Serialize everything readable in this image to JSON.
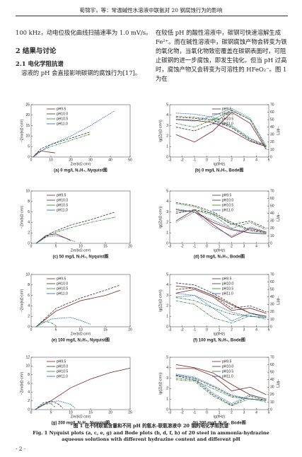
{
  "header": "荀锦宇，等：常温碱性水溶液中联氨对 20 钢腐蚀行为的影响",
  "left_line": "100 kHz，动电位极化曲线扫描速率为 1.0 mV/s。",
  "section": "2  结果与讨论",
  "subsection": "2.1  电化学阻抗谱",
  "left_para": "溶液的 pH 会直接影响碳钢的腐蚀行为[17]。",
  "right_para": "在较低 pH 的酸性溶液中，碳钢可快速溶解生成 Fe²⁺。而在碱性溶液中，碳钢腐蚀产物会转变为铁的氧化物，当氧化物致密覆盖在碳钢表面时，可阻止碳钢的进一步腐蚀，即发生钝化。但当 pH 过高时，腐蚀产物又会转变为可溶性的 HFeO₂⁻。图 1 为在",
  "fig_caption_cn": "图 1  在不同联氨含量和不同 pH 的氨水-联氨溶液中 20 钢的电化学阻抗谱",
  "fig_caption_en": "Fig. 1  Nyquist plots (a, c, e, g) and Bode plots (b, d, f, h) of 20 steel in ammonia-hydrazine aqueous solutions with different hydrazine content and different pH",
  "page_number": "· 2 ·",
  "chart_data": [
    {
      "type": "nyquist",
      "title": "(a) 0 mg/L N₂H₄, Nyquist图",
      "x_label": "Zre/(kΩ·cm²)",
      "y_label": "−Zim/(kΩ·cm²)",
      "xlim": [
        0,
        50
      ],
      "ylim": [
        0,
        25
      ],
      "xticks": [
        0,
        10,
        20,
        30,
        40,
        50
      ],
      "yticks": [
        0,
        5,
        10,
        15,
        20,
        25
      ],
      "series": [
        {
          "name": "pH9.5",
          "color": "#7a1e1e",
          "x": [
            1,
            3,
            5,
            8,
            12
          ],
          "values": [
            0,
            2,
            3,
            2.5,
            2
          ]
        },
        {
          "name": "pH10.0",
          "color": "#333333",
          "x": [
            1,
            5,
            10,
            20,
            30
          ],
          "values": [
            0,
            4,
            6,
            9,
            12
          ]
        },
        {
          "name": "pH10.5",
          "color": "#2e7d32",
          "x": [
            1,
            5,
            10,
            20,
            30
          ],
          "values": [
            0,
            3,
            5,
            8,
            11
          ]
        },
        {
          "name": "pH11.0",
          "color": "#1f5fa8",
          "x": [
            1,
            10,
            20,
            30,
            42
          ],
          "values": [
            0,
            6,
            10,
            15,
            22
          ]
        }
      ]
    },
    {
      "type": "bode",
      "title": "(b) 0 mg/L N₂H₄, Bode图",
      "x_label": "lg(f/Hz)",
      "y_label": "lg(|Z|/(Ω·cm²))",
      "y2_label": "−θ/(°)",
      "xlim": [
        -3,
        5
      ],
      "ylim": [
        0,
        5
      ],
      "y2lim": [
        0,
        70
      ],
      "xticks": [
        -3,
        -2,
        -1,
        0,
        1,
        2,
        3,
        4,
        5
      ],
      "yticks": [
        0,
        1,
        2,
        3,
        4,
        5
      ],
      "y2ticks": [
        0,
        10,
        20,
        30,
        40,
        50,
        60,
        70
      ],
      "x": [
        -2.5,
        -1,
        0.5,
        2,
        3.5,
        4.8
      ],
      "series": [
        {
          "name": "pH9.5",
          "color": "#7a1e1e",
          "values": [
            3.6,
            3.5,
            3.3,
            2.5,
            1.5,
            1.0
          ]
        },
        {
          "name": "pH10.0",
          "color": "#333333",
          "values": [
            3.8,
            3.7,
            3.5,
            2.8,
            1.6,
            1.0
          ]
        },
        {
          "name": "pH10.5",
          "color": "#2e7d32",
          "values": [
            3.9,
            3.8,
            3.6,
            2.9,
            1.7,
            1.1
          ]
        },
        {
          "name": "pH11.0",
          "color": "#1f5fa8",
          "values": [
            4.2,
            4.1,
            3.8,
            3.0,
            1.8,
            1.1
          ]
        },
        {
          "color": "#7a1e1e",
          "axis": "y2",
          "values": [
            30,
            20,
            35,
            60,
            45,
            10
          ]
        },
        {
          "color": "#333333",
          "axis": "y2",
          "values": [
            40,
            35,
            45,
            62,
            50,
            12
          ]
        },
        {
          "color": "#2e7d32",
          "axis": "y2",
          "values": [
            45,
            40,
            50,
            63,
            50,
            12
          ]
        },
        {
          "color": "#1f5fa8",
          "axis": "y2",
          "values": [
            50,
            48,
            55,
            65,
            52,
            15
          ]
        }
      ]
    },
    {
      "type": "nyquist",
      "title": "(c) 50 mg/L N₂H₄, Nyquist图",
      "x_label": "Zre/(kΩ·cm²)",
      "y_label": "−Zim/(kΩ·cm²)",
      "xlim": [
        0,
        20
      ],
      "ylim": [
        0,
        10
      ],
      "xticks": [
        0,
        5,
        10,
        15,
        20
      ],
      "yticks": [
        0,
        2,
        4,
        6,
        8,
        10
      ],
      "series": [
        {
          "name": "pH9.5",
          "color": "#7a1e1e",
          "x": [
            1,
            3,
            5,
            7,
            8
          ],
          "values": [
            0,
            1.5,
            1.8,
            1,
            0.5
          ]
        },
        {
          "name": "pH10.0",
          "color": "#333333",
          "x": [
            1,
            4,
            8,
            12,
            17
          ],
          "values": [
            0,
            2,
            3.5,
            4.5,
            6
          ]
        },
        {
          "name": "pH10.5",
          "color": "#2e7d32",
          "x": [
            1,
            4,
            8,
            12,
            17
          ],
          "values": [
            0,
            1.8,
            3,
            4,
            5
          ]
        },
        {
          "name": "pH11.0",
          "color": "#1f5fa8",
          "x": [
            1,
            3,
            5,
            7,
            9
          ],
          "values": [
            0,
            1.2,
            1.5,
            1,
            0.3
          ]
        }
      ]
    },
    {
      "type": "bode",
      "title": "(d) 50 mg/L N₂H₄, Bode图",
      "x_label": "lg(f/Hz)",
      "y_label": "lg(|Z|/(Ω·cm²))",
      "y2_label": "−θ/(°)",
      "xlim": [
        -3,
        5
      ],
      "ylim": [
        0,
        5
      ],
      "y2lim": [
        0,
        70
      ],
      "xticks": [
        -3,
        -2,
        -1,
        0,
        1,
        2,
        3,
        4,
        5
      ],
      "yticks": [
        0,
        1,
        2,
        3,
        4,
        5
      ],
      "y2ticks": [
        0,
        10,
        20,
        30,
        40,
        50,
        60,
        70
      ],
      "x": [
        -2.5,
        -1,
        0.5,
        2,
        3.5,
        4.8
      ],
      "series": [
        {
          "name": "pH9.5",
          "color": "#7a1e1e",
          "values": [
            3.2,
            3.0,
            2.0,
            1.3,
            1.0,
            0.9
          ]
        },
        {
          "name": "pH10.0",
          "color": "#333333",
          "values": [
            3.9,
            3.6,
            3.0,
            2.0,
            1.3,
            1.0
          ]
        },
        {
          "name": "pH10.5",
          "color": "#2e7d32",
          "values": [
            3.8,
            3.5,
            2.8,
            1.9,
            1.2,
            1.0
          ]
        },
        {
          "name": "pH11.0",
          "color": "#1f5fa8",
          "values": [
            3.3,
            3.0,
            2.2,
            1.4,
            1.0,
            0.9
          ]
        },
        {
          "color": "#7a1e1e",
          "axis": "y2",
          "values": [
            30,
            45,
            25,
            8,
            20,
            15
          ]
        },
        {
          "color": "#333333",
          "axis": "y2",
          "values": [
            40,
            45,
            40,
            25,
            30,
            20
          ]
        },
        {
          "color": "#2e7d32",
          "axis": "y2",
          "values": [
            42,
            44,
            38,
            20,
            28,
            18
          ]
        },
        {
          "color": "#1f5fa8",
          "axis": "y2",
          "values": [
            28,
            42,
            22,
            10,
            22,
            15
          ]
        }
      ]
    },
    {
      "type": "nyquist",
      "title": "(e) 100 mg/L N₂H₄, Nyquist图",
      "x_label": "Zre/(kΩ·cm²)",
      "y_label": "−Zim/(kΩ·cm²)",
      "xlim": [
        0,
        20
      ],
      "ylim": [
        0,
        10
      ],
      "xticks": [
        0,
        5,
        10,
        15,
        20
      ],
      "yticks": [
        0,
        2,
        4,
        6,
        8,
        10
      ],
      "series": [
        {
          "name": "pH9.5",
          "color": "#7a1e1e",
          "x": [
            1,
            5,
            10,
            15,
            18
          ],
          "values": [
            0,
            3,
            5,
            6,
            7
          ]
        },
        {
          "name": "pH10.0",
          "color": "#333333",
          "x": [
            1,
            5,
            10,
            15,
            18
          ],
          "values": [
            0,
            3.5,
            5.5,
            7,
            8
          ]
        },
        {
          "name": "pH10.5",
          "color": "#2e7d32",
          "x": [
            1,
            2,
            3,
            4,
            5
          ],
          "values": [
            0,
            0.8,
            1,
            0.8,
            0.2
          ]
        },
        {
          "name": "pH11.0",
          "color": "#1f5fa8",
          "x": [
            1,
            4,
            8,
            10,
            12
          ],
          "values": [
            0,
            1.5,
            1.8,
            1.2,
            0.5
          ]
        }
      ]
    },
    {
      "type": "bode",
      "title": "(f) 100 mg/L N₂H₄, Bode图",
      "x_label": "lg(f/Hz)",
      "y_label": "lg(|Z|/(Ω·cm²))",
      "y2_label": "−θ/(°)",
      "xlim": [
        -3,
        5
      ],
      "ylim": [
        0,
        5
      ],
      "y2lim": [
        0,
        70
      ],
      "xticks": [
        -3,
        -2,
        -1,
        0,
        1,
        2,
        3,
        4,
        5
      ],
      "yticks": [
        0,
        1,
        2,
        3,
        4,
        5
      ],
      "y2ticks": [
        0,
        10,
        20,
        30,
        40,
        50,
        60,
        70
      ],
      "x": [
        -2.5,
        -1,
        0.5,
        2,
        3.5,
        4.8
      ],
      "series": [
        {
          "name": "pH9.5",
          "color": "#7a1e1e",
          "values": [
            3.9,
            3.7,
            3.0,
            2.1,
            1.3,
            1.0
          ]
        },
        {
          "name": "pH10.0",
          "color": "#333333",
          "values": [
            4.2,
            4.0,
            3.2,
            2.2,
            1.3,
            1.0
          ]
        },
        {
          "name": "pH10.5",
          "color": "#2e7d32",
          "values": [
            2.8,
            2.5,
            1.8,
            1.2,
            1.0,
            0.9
          ]
        },
        {
          "name": "pH11.0",
          "color": "#1f5fa8",
          "values": [
            3.2,
            3.0,
            2.2,
            1.4,
            1.0,
            0.9
          ]
        },
        {
          "color": "#7a1e1e",
          "axis": "y2",
          "values": [
            45,
            50,
            40,
            22,
            25,
            18
          ]
        },
        {
          "color": "#333333",
          "axis": "y2",
          "values": [
            50,
            52,
            42,
            25,
            28,
            20
          ]
        },
        {
          "color": "#2e7d32",
          "axis": "y2",
          "values": [
            35,
            30,
            12,
            5,
            15,
            10
          ]
        },
        {
          "color": "#1f5fa8",
          "axis": "y2",
          "values": [
            40,
            42,
            25,
            8,
            18,
            12
          ]
        }
      ]
    },
    {
      "type": "nyquist",
      "title": "(g) 200 mg/L N₂H₄, Nyquist图",
      "x_label": "Zre/(kΩ·cm²)",
      "y_label": "−Zim/(kΩ·cm²)",
      "xlim": [
        0,
        25
      ],
      "ylim": [
        0,
        12
      ],
      "xticks": [
        0,
        5,
        10,
        15,
        20,
        25
      ],
      "yticks": [
        0,
        2,
        4,
        6,
        8,
        10,
        12
      ],
      "series": [
        {
          "name": "pH9.5",
          "color": "#7a1e1e",
          "x": [
            1,
            5,
            10,
            15,
            20,
            25
          ],
          "values": [
            0,
            2,
            5,
            7,
            8.5,
            9.5
          ]
        },
        {
          "name": "pH10.0",
          "color": "#333333",
          "x": [
            1,
            3,
            5,
            7,
            8
          ],
          "values": [
            0,
            1.5,
            2,
            1.2,
            0.3
          ]
        },
        {
          "name": "pH10.5",
          "color": "#2e7d32",
          "x": [
            1,
            3,
            5,
            6
          ],
          "values": [
            0,
            1.2,
            1.4,
            0.6
          ]
        },
        {
          "name": "pH11.0",
          "color": "#1f5fa8",
          "x": [
            1,
            4,
            7,
            10,
            11
          ],
          "values": [
            0,
            1.6,
            2,
            1.2,
            0.4
          ]
        }
      ]
    },
    {
      "type": "bode",
      "title": "(h) 200 mg/L N₂H₄, Bode图",
      "x_label": "lg(f/Hz)",
      "y_label": "lg(|Z|/(Ω·cm²))",
      "y2_label": "−θ/(°)",
      "xlim": [
        -3,
        5
      ],
      "ylim": [
        0,
        5
      ],
      "y2lim": [
        0,
        70
      ],
      "xticks": [
        -3,
        -2,
        -1,
        0,
        1,
        2,
        3,
        4,
        5
      ],
      "yticks": [
        0,
        1,
        2,
        3,
        4,
        5
      ],
      "y2ticks": [
        0,
        10,
        20,
        30,
        40,
        50,
        60,
        70
      ],
      "x": [
        -2.5,
        -1,
        0.5,
        2,
        3.5,
        4.8
      ],
      "series": [
        {
          "name": "pH9.5",
          "color": "#7a1e1e",
          "values": [
            4.3,
            4.0,
            3.5,
            2.4,
            1.4,
            1.0
          ]
        },
        {
          "name": "pH10.0",
          "color": "#333333",
          "values": [
            3.3,
            3.0,
            2.2,
            1.3,
            1.0,
            0.9
          ]
        },
        {
          "name": "pH10.5",
          "color": "#2e7d32",
          "values": [
            3.0,
            2.8,
            2.0,
            1.2,
            1.0,
            0.9
          ]
        },
        {
          "name": "pH11.0",
          "color": "#1f5fa8",
          "values": [
            3.4,
            3.1,
            2.3,
            1.4,
            1.0,
            0.9
          ]
        },
        {
          "color": "#7a1e1e",
          "axis": "y2",
          "values": [
            55,
            55,
            45,
            25,
            30,
            20
          ]
        },
        {
          "color": "#333333",
          "axis": "y2",
          "values": [
            45,
            40,
            20,
            6,
            18,
            12
          ]
        },
        {
          "color": "#2e7d32",
          "axis": "y2",
          "values": [
            40,
            38,
            18,
            5,
            15,
            10
          ]
        },
        {
          "color": "#1f5fa8",
          "axis": "y2",
          "values": [
            46,
            42,
            22,
            8,
            20,
            14
          ]
        }
      ]
    }
  ]
}
